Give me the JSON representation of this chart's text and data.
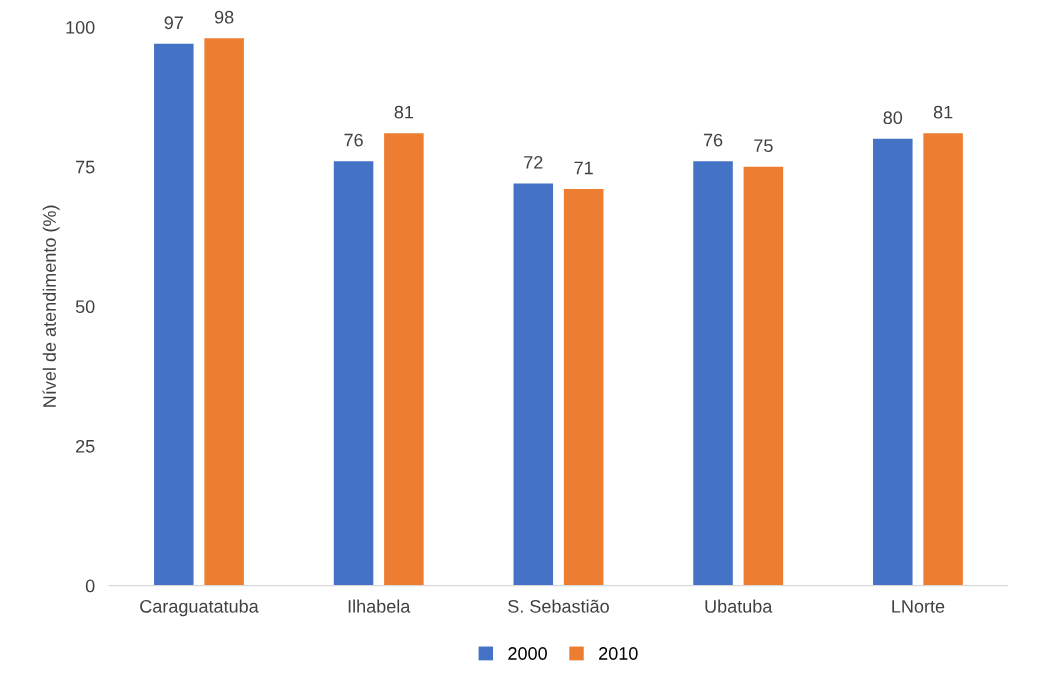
{
  "chart_data": {
    "type": "bar",
    "ylabel": "Nível de atendimento (%)",
    "categories": [
      "Caraguatatuba",
      "Ilhabela",
      "S. Sebastião",
      "Ubatuba",
      "LNorte"
    ],
    "series": [
      {
        "name": "2000",
        "color": "#4472c4",
        "values": [
          97,
          76,
          72,
          76,
          80
        ]
      },
      {
        "name": "2010",
        "color": "#ed7d31",
        "values": [
          98,
          81,
          71,
          75,
          81
        ]
      }
    ],
    "ylim": [
      0,
      100
    ],
    "yticks": [
      0,
      25,
      50,
      75,
      100
    ],
    "grid": false,
    "legend": "bottom",
    "data_labels": true
  }
}
